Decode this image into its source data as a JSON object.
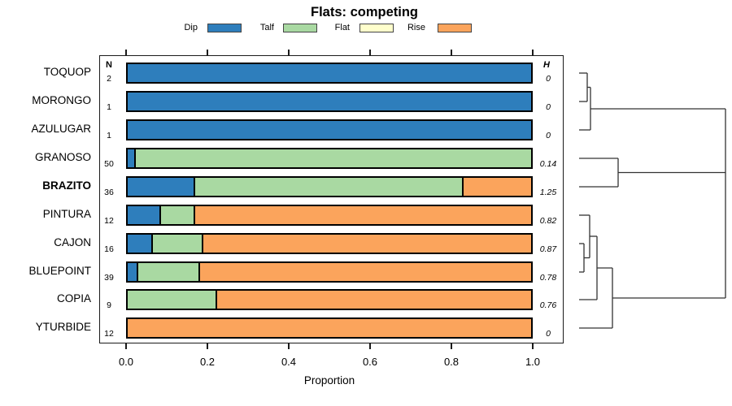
{
  "title": "Flats: competing",
  "legend": {
    "items": [
      {
        "label": "Dip",
        "color": "#2E7EBC"
      },
      {
        "label": "Talf",
        "color": "#A9D9A2"
      },
      {
        "label": "Flat",
        "color": "#FFFFCC"
      },
      {
        "label": "Rise",
        "color": "#FBA45C"
      }
    ]
  },
  "columns": {
    "n_header": "N",
    "h_header": "H"
  },
  "axis": {
    "xlabel": "Proportion",
    "tick_labels": [
      "0.0",
      "0.2",
      "0.4",
      "0.6",
      "0.8",
      "1.0"
    ]
  },
  "chart_data": {
    "type": "bar",
    "orientation": "horizontal",
    "stacked": true,
    "title": "Flats: competing",
    "xlabel": "Proportion",
    "xlim": [
      0,
      1
    ],
    "x_ticks": [
      0.0,
      0.2,
      0.4,
      0.6,
      0.8,
      1.0
    ],
    "legend_position": "top",
    "series_names": [
      "Dip",
      "Talf",
      "Flat",
      "Rise"
    ],
    "rows": [
      {
        "label": "TOQUOP",
        "n": "2",
        "h": "0",
        "bold": false,
        "segments": {
          "Dip": 1.0,
          "Talf": 0,
          "Flat": 0,
          "Rise": 0
        }
      },
      {
        "label": "MORONGO",
        "n": "1",
        "h": "0",
        "bold": false,
        "segments": {
          "Dip": 1.0,
          "Talf": 0,
          "Flat": 0,
          "Rise": 0
        }
      },
      {
        "label": "AZULUGAR",
        "n": "1",
        "h": "0",
        "bold": false,
        "segments": {
          "Dip": 1.0,
          "Talf": 0,
          "Flat": 0,
          "Rise": 0
        }
      },
      {
        "label": "GRANOSO",
        "n": "50",
        "h": "0.14",
        "bold": false,
        "segments": {
          "Dip": 0.02,
          "Talf": 0.98,
          "Flat": 0,
          "Rise": 0
        }
      },
      {
        "label": "BRAZITO",
        "n": "36",
        "h": "1.25",
        "bold": true,
        "segments": {
          "Dip": 0.167,
          "Talf": 0.666,
          "Flat": 0,
          "Rise": 0.167
        }
      },
      {
        "label": "PINTURA",
        "n": "12",
        "h": "0.82",
        "bold": false,
        "segments": {
          "Dip": 0.083,
          "Talf": 0.084,
          "Flat": 0,
          "Rise": 0.833
        }
      },
      {
        "label": "CAJON",
        "n": "16",
        "h": "0.87",
        "bold": false,
        "segments": {
          "Dip": 0.0625,
          "Talf": 0.125,
          "Flat": 0,
          "Rise": 0.8125
        }
      },
      {
        "label": "BLUEPOINT",
        "n": "39",
        "h": "0.78",
        "bold": false,
        "segments": {
          "Dip": 0.026,
          "Talf": 0.154,
          "Flat": 0,
          "Rise": 0.82
        }
      },
      {
        "label": "COPIA",
        "n": "9",
        "h": "0.76",
        "bold": false,
        "segments": {
          "Dip": 0,
          "Talf": 0.222,
          "Flat": 0,
          "Rise": 0.778
        }
      },
      {
        "label": "YTURBIDE",
        "n": "12",
        "h": "0",
        "bold": false,
        "segments": {
          "Dip": 0,
          "Talf": 0,
          "Flat": 0,
          "Rise": 1.0
        }
      }
    ]
  },
  "dendrogram": {
    "segments": [
      [
        712,
        90,
        722,
        90
      ],
      [
        712,
        125,
        722,
        125
      ],
      [
        722,
        90,
        722,
        125
      ],
      [
        722,
        107.5,
        726,
        107.5
      ],
      [
        712,
        160,
        726,
        160
      ],
      [
        726,
        107.5,
        726,
        160
      ],
      [
        726,
        134,
        892,
        134
      ],
      [
        712,
        195,
        760,
        195
      ],
      [
        712,
        230,
        760,
        230
      ],
      [
        760,
        195,
        760,
        230
      ],
      [
        760,
        212.5,
        892,
        212.5
      ],
      [
        712,
        265,
        725,
        265
      ],
      [
        712,
        300,
        718,
        300
      ],
      [
        712,
        335,
        718,
        335
      ],
      [
        718,
        300,
        718,
        335
      ],
      [
        718,
        317.5,
        725,
        317.5
      ],
      [
        725,
        265,
        725,
        317.5
      ],
      [
        725,
        291,
        734,
        291
      ],
      [
        712,
        369,
        734,
        369
      ],
      [
        734,
        291,
        734,
        369
      ],
      [
        734,
        330,
        753,
        330
      ],
      [
        712,
        404,
        753,
        404
      ],
      [
        753,
        330,
        753,
        404
      ],
      [
        753,
        367,
        892,
        367
      ],
      [
        892,
        134,
        892,
        367
      ]
    ]
  }
}
